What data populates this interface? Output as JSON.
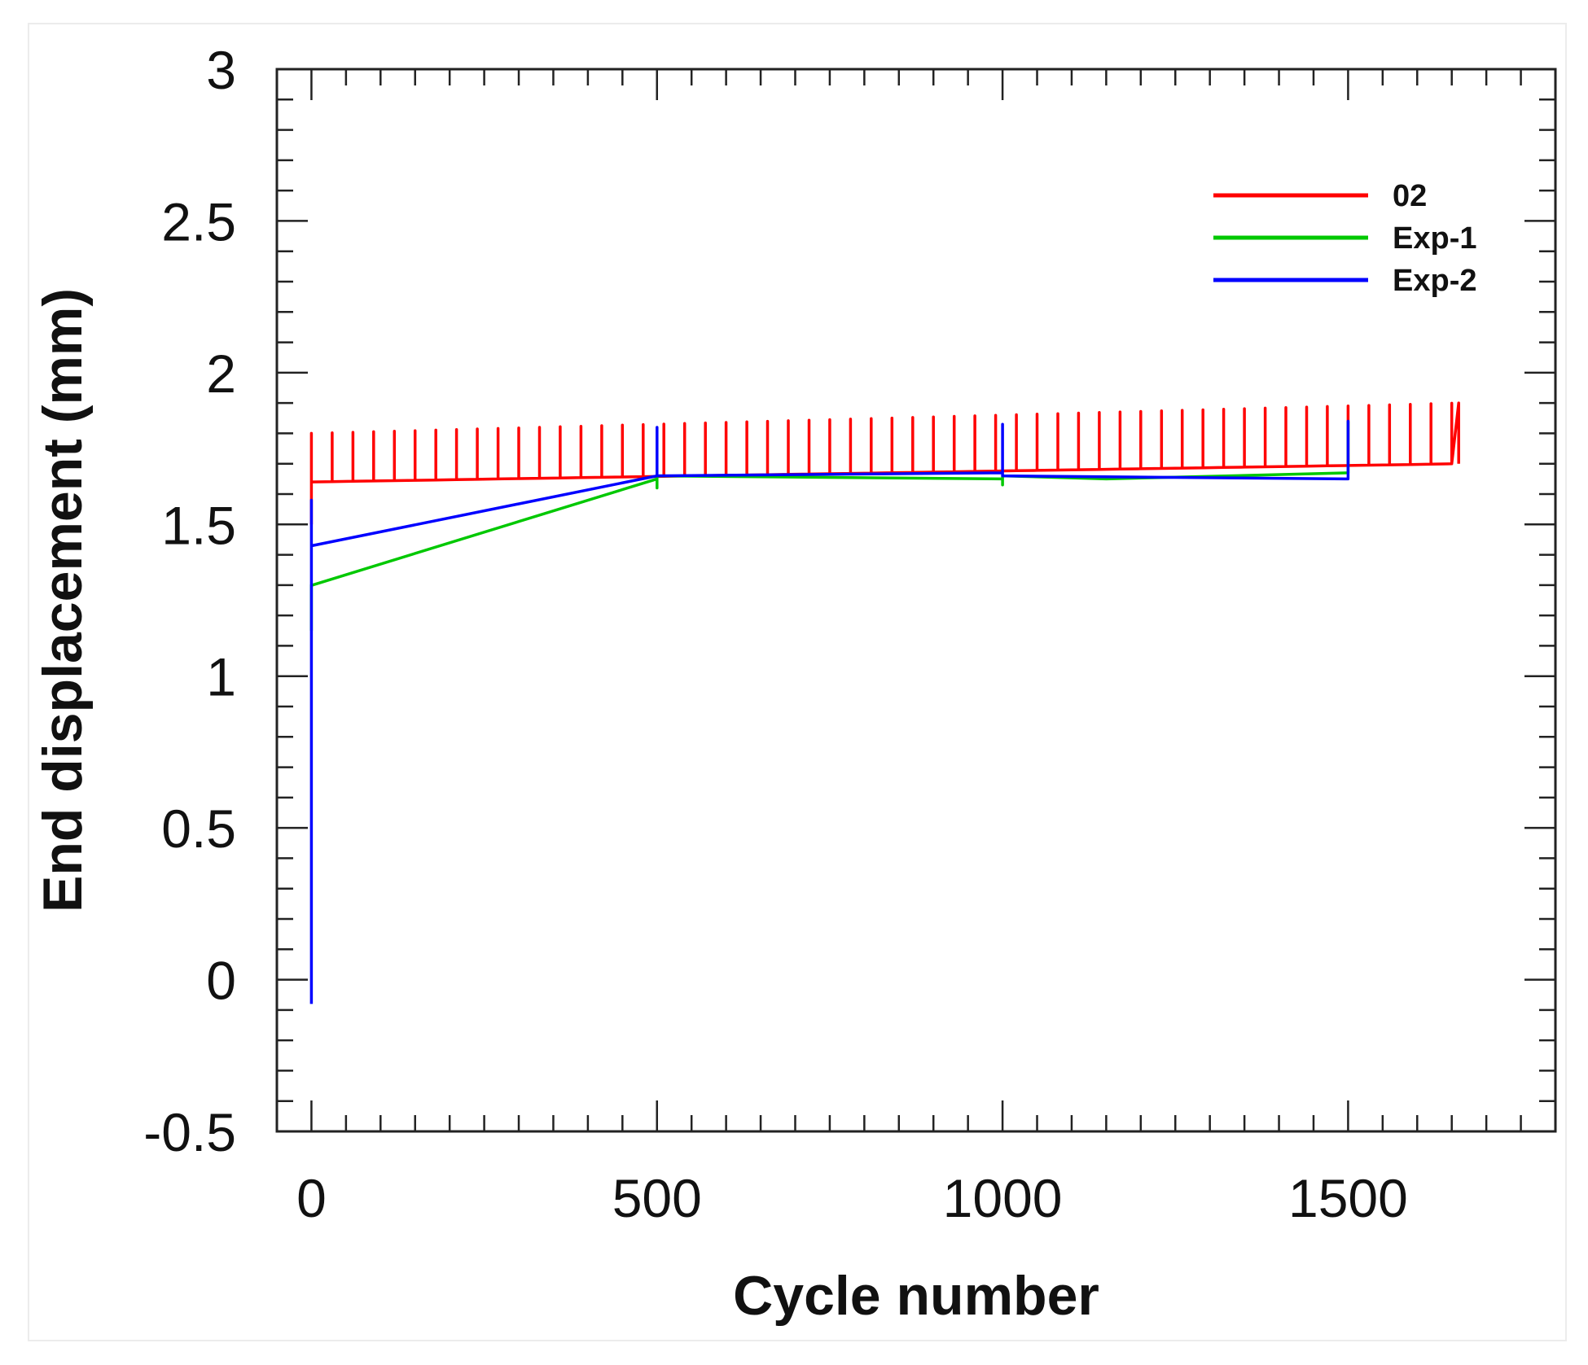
{
  "chart_data": {
    "type": "line",
    "title": "",
    "xlabel": "Cycle number",
    "ylabel": "End displacement (mm)",
    "xlim": [
      -50,
      1800
    ],
    "ylim": [
      -0.5,
      3
    ],
    "x_ticks": [
      0,
      500,
      1000,
      1500
    ],
    "x_tick_labels": [
      "0",
      "500",
      "1000",
      "1500"
    ],
    "y_ticks": [
      -0.5,
      0,
      0.5,
      1,
      1.5,
      2,
      2.5,
      3
    ],
    "y_tick_labels": [
      "-0.5",
      "0",
      "0.5",
      "1",
      "1.5",
      "2",
      "2.5",
      "3"
    ],
    "grid": false,
    "legend_position": "top-right",
    "series": [
      {
        "name": "02",
        "color": "#ff0000",
        "style": "sawtooth",
        "x_start": 0,
        "x_end": 1660,
        "cycle_interval": 30,
        "base_start": 1.64,
        "base_end": 1.7,
        "peak_start": 1.8,
        "peak_end": 1.9,
        "initial_drop_low": 1.5
      },
      {
        "name": "Exp-1",
        "color": "#00c800",
        "style": "line",
        "x": [
          0,
          0,
          1,
          500,
          500,
          500,
          1000,
          1000,
          1000,
          1150,
          1500,
          1500
        ],
        "y": [
          1.15,
          1.3,
          1.3,
          1.65,
          1.62,
          1.66,
          1.65,
          1.63,
          1.66,
          1.65,
          1.67,
          1.84
        ]
      },
      {
        "name": "Exp-2",
        "color": "#0000ff",
        "style": "line",
        "x": [
          0,
          0,
          0,
          1,
          500,
          500,
          500,
          1000,
          1000,
          1000,
          1500,
          1500,
          1500
        ],
        "y": [
          -0.08,
          1.58,
          1.43,
          1.43,
          1.66,
          1.82,
          1.66,
          1.67,
          1.83,
          1.66,
          1.65,
          1.84,
          1.66
        ]
      }
    ]
  }
}
